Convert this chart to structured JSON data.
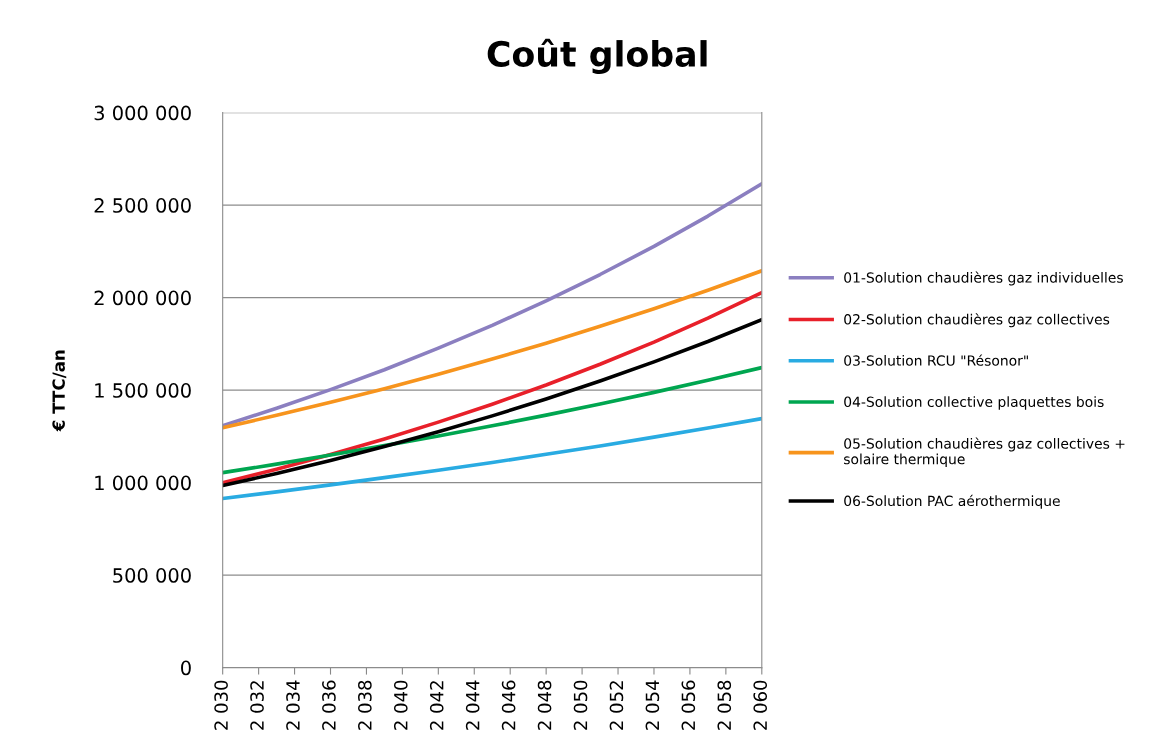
{
  "chart_data": {
    "type": "line",
    "title": "Coût global",
    "ylabel": "€ TTC/an",
    "x": [
      2030,
      2033,
      2036,
      2039,
      2042,
      2045,
      2048,
      2051,
      2054,
      2057,
      2060
    ],
    "series": [
      {
        "name": "01-Solution chaudières gaz individuelles",
        "color": "#8b7fc0",
        "values": [
          1308000,
          1402000,
          1503000,
          1610000,
          1727000,
          1850000,
          1983000,
          2125000,
          2277000,
          2441000,
          2616000
        ]
      },
      {
        "name": "02-Solution chaudières gaz collectives",
        "color": "#e8202a",
        "values": [
          1000000,
          1073000,
          1152000,
          1236000,
          1327000,
          1424000,
          1528000,
          1640000,
          1760000,
          1889000,
          2027000
        ]
      },
      {
        "name": "03-Solution RCU \"Résonor\"",
        "color": "#29abe2",
        "values": [
          914000,
          950000,
          988000,
          1027000,
          1067000,
          1109000,
          1153000,
          1198000,
          1246000,
          1295000,
          1346000
        ]
      },
      {
        "name": "04-Solution collective plaquettes bois",
        "color": "#00a650",
        "values": [
          1054000,
          1100000,
          1149000,
          1200000,
          1252000,
          1307000,
          1365000,
          1425000,
          1488000,
          1554000,
          1622000
        ]
      },
      {
        "name": "05-Solution chaudières gaz collectives + solaire thermique",
        "color": "#f7941d",
        "values": [
          1297000,
          1364000,
          1434000,
          1508000,
          1586000,
          1668000,
          1754000,
          1845000,
          1940000,
          2040000,
          2145000
        ]
      },
      {
        "name": "06-Solution PAC aérothermique",
        "color": "#000000",
        "values": [
          984000,
          1050000,
          1120000,
          1195000,
          1275000,
          1361000,
          1452000,
          1549000,
          1653000,
          1763000,
          1881000
        ]
      }
    ],
    "xlim": [
      2030,
      2060
    ],
    "xticks": [
      {
        "value": 2030,
        "label": "2 030"
      },
      {
        "value": 2032,
        "label": "2 032"
      },
      {
        "value": 2034,
        "label": "2 034"
      },
      {
        "value": 2036,
        "label": "2 036"
      },
      {
        "value": 2038,
        "label": "2 038"
      },
      {
        "value": 2040,
        "label": "2 040"
      },
      {
        "value": 2042,
        "label": "2 042"
      },
      {
        "value": 2044,
        "label": "2 044"
      },
      {
        "value": 2046,
        "label": "2 046"
      },
      {
        "value": 2048,
        "label": "2 048"
      },
      {
        "value": 2050,
        "label": "2 050"
      },
      {
        "value": 2052,
        "label": "2 052"
      },
      {
        "value": 2054,
        "label": "2 054"
      },
      {
        "value": 2056,
        "label": "2 056"
      },
      {
        "value": 2058,
        "label": "2 058"
      },
      {
        "value": 2060,
        "label": "2 060"
      }
    ],
    "ylim": [
      0,
      3000000
    ],
    "yticks": [
      0,
      {
        "value": 500000,
        "label": "500 000"
      },
      {
        "value": 1000000,
        "label": "1 000 000"
      },
      {
        "value": 1500000,
        "label": "1 500 000"
      },
      {
        "value": 2000000,
        "label": "2 000 000"
      },
      {
        "value": 2500000,
        "label": "2 500 000"
      },
      {
        "value": 3000000,
        "label": "3 000 000"
      }
    ],
    "grid": "y",
    "legend": "right",
    "marker": "none",
    "line_style": "solid"
  }
}
